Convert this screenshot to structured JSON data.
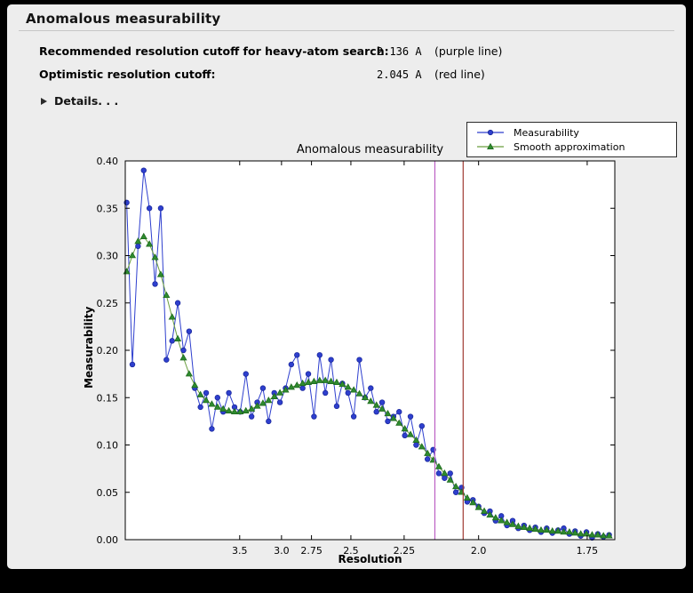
{
  "header": {
    "title": "Anomalous measurability"
  },
  "cutoffs": {
    "rows": [
      {
        "label": "Recommended resolution cutoff for heavy-atom search:",
        "value": "2.136 A",
        "note": "(purple line)"
      },
      {
        "label": "Optimistic resolution cutoff:",
        "value": "2.045 A",
        "note": "(red line)"
      }
    ],
    "details_label": "Details. . ."
  },
  "chart_data": {
    "type": "line",
    "title": "Anomalous measurability",
    "xlabel": "Resolution",
    "ylabel": "Measurability",
    "grid": false,
    "legend_position": "top-right",
    "x_axis": {
      "scale": "1/d^2 (resolution in Angstrom, decreasing d to the right)",
      "lim": [
        0.001,
        0.346
      ],
      "ticks": [
        {
          "label": "3.5",
          "value": 0.081633
        },
        {
          "label": "3.0",
          "value": 0.111111
        },
        {
          "label": "2.75",
          "value": 0.132231
        },
        {
          "label": "2.5",
          "value": 0.16
        },
        {
          "label": "2.25",
          "value": 0.197531
        },
        {
          "label": "2.0",
          "value": 0.25
        },
        {
          "label": "1.75",
          "value": 0.326531
        }
      ]
    },
    "y_axis": {
      "lim": [
        0.0,
        0.4
      ],
      "ticks": [
        {
          "label": "0.00",
          "value": 0.0
        },
        {
          "label": "0.05",
          "value": 0.05
        },
        {
          "label": "0.10",
          "value": 0.1
        },
        {
          "label": "0.15",
          "value": 0.15
        },
        {
          "label": "0.20",
          "value": 0.2
        },
        {
          "label": "0.25",
          "value": 0.25
        },
        {
          "label": "0.30",
          "value": 0.3
        },
        {
          "label": "0.35",
          "value": 0.35
        },
        {
          "label": "0.40",
          "value": 0.4
        }
      ]
    },
    "x": [
      0.002,
      0.006,
      0.01,
      0.014,
      0.018,
      0.022,
      0.026,
      0.03,
      0.034,
      0.038,
      0.042,
      0.046,
      0.05,
      0.054,
      0.058,
      0.062,
      0.066,
      0.07,
      0.074,
      0.078,
      0.082,
      0.086,
      0.09,
      0.094,
      0.098,
      0.102,
      0.106,
      0.11,
      0.114,
      0.118,
      0.122,
      0.126,
      0.13,
      0.134,
      0.138,
      0.142,
      0.146,
      0.15,
      0.154,
      0.158,
      0.162,
      0.166,
      0.17,
      0.174,
      0.178,
      0.182,
      0.186,
      0.19,
      0.194,
      0.198,
      0.202,
      0.206,
      0.21,
      0.214,
      0.218,
      0.222,
      0.226,
      0.23,
      0.234,
      0.238,
      0.242,
      0.246,
      0.25,
      0.254,
      0.258,
      0.262,
      0.266,
      0.27,
      0.274,
      0.278,
      0.282,
      0.286,
      0.29,
      0.294,
      0.298,
      0.302,
      0.306,
      0.31,
      0.314,
      0.318,
      0.322,
      0.326,
      0.33,
      0.334,
      0.338,
      0.342
    ],
    "series": [
      {
        "name": "Measurability",
        "color": "#2e3fce",
        "edge": "#1c2a9e",
        "marker": "circle",
        "values": [
          0.356,
          0.185,
          0.31,
          0.39,
          0.35,
          0.27,
          0.35,
          0.19,
          0.21,
          0.25,
          0.2,
          0.22,
          0.16,
          0.14,
          0.155,
          0.117,
          0.15,
          0.135,
          0.155,
          0.14,
          0.135,
          0.175,
          0.13,
          0.145,
          0.16,
          0.125,
          0.155,
          0.145,
          0.16,
          0.185,
          0.195,
          0.16,
          0.175,
          0.13,
          0.195,
          0.155,
          0.19,
          0.141,
          0.165,
          0.155,
          0.13,
          0.19,
          0.15,
          0.16,
          0.135,
          0.145,
          0.125,
          0.13,
          0.135,
          0.11,
          0.13,
          0.1,
          0.12,
          0.085,
          0.095,
          0.07,
          0.065,
          0.07,
          0.05,
          0.055,
          0.04,
          0.042,
          0.035,
          0.028,
          0.03,
          0.02,
          0.025,
          0.015,
          0.02,
          0.012,
          0.015,
          0.01,
          0.013,
          0.008,
          0.012,
          0.007,
          0.01,
          0.012,
          0.006,
          0.009,
          0.004,
          0.008,
          0.002,
          0.006,
          0.003,
          0.005
        ]
      },
      {
        "name": "Smooth approximation",
        "color": "#6b9e3f",
        "marker_color": "#2e8b2e",
        "edge": "#1f6b1f",
        "marker": "triangle",
        "values": [
          0.283,
          0.3,
          0.315,
          0.32,
          0.312,
          0.298,
          0.28,
          0.258,
          0.235,
          0.212,
          0.192,
          0.175,
          0.163,
          0.153,
          0.147,
          0.143,
          0.14,
          0.138,
          0.136,
          0.135,
          0.135,
          0.136,
          0.138,
          0.141,
          0.144,
          0.147,
          0.151,
          0.155,
          0.158,
          0.161,
          0.163,
          0.165,
          0.166,
          0.167,
          0.168,
          0.168,
          0.167,
          0.166,
          0.164,
          0.161,
          0.158,
          0.154,
          0.15,
          0.146,
          0.142,
          0.138,
          0.133,
          0.128,
          0.123,
          0.117,
          0.111,
          0.105,
          0.098,
          0.091,
          0.084,
          0.077,
          0.07,
          0.063,
          0.056,
          0.05,
          0.044,
          0.039,
          0.034,
          0.03,
          0.026,
          0.023,
          0.02,
          0.018,
          0.016,
          0.014,
          0.013,
          0.012,
          0.011,
          0.01,
          0.01,
          0.009,
          0.009,
          0.008,
          0.008,
          0.007,
          0.006,
          0.006,
          0.005,
          0.005,
          0.004,
          0.004
        ]
      }
    ],
    "vlines": [
      {
        "name": "purple line",
        "resolution": 2.136,
        "x": 0.21918,
        "color": "#bb5fc4"
      },
      {
        "name": "red line",
        "resolution": 2.045,
        "x": 0.23912,
        "color": "#a03a33"
      }
    ]
  }
}
